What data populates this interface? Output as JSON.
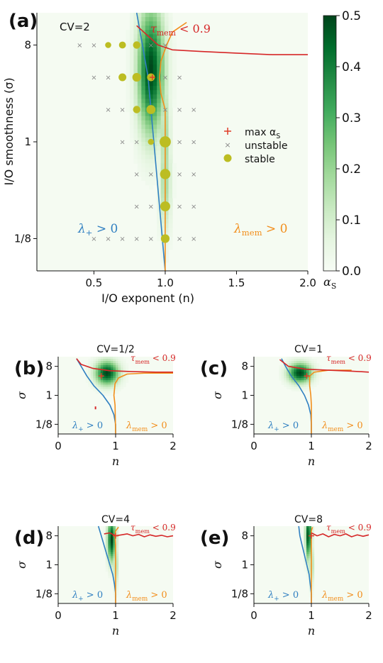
{
  "colors": {
    "lambda_plus": "#2f7fc1",
    "lambda_mem": "#f28e1c",
    "tau_mem": "#d62728",
    "stable": "#bcbd22",
    "unstable": "#888888",
    "max_marker": "#e03c28",
    "cmap_low": "#f7fcf5",
    "cmap_high": "#00441b"
  },
  "colorbar": {
    "ticks": [
      "0.0",
      "0.1",
      "0.2",
      "0.3",
      "0.4",
      "0.5"
    ],
    "range": [
      0.0,
      0.5
    ],
    "label": "α",
    "label_sub": "S"
  },
  "legend": {
    "max": "max α",
    "max_sub": "S",
    "unstable": "unstable",
    "stable": "stable"
  },
  "chart_data": [
    {
      "type": "heatmap",
      "panel": "(a)",
      "cv_label": "CV=2",
      "xlabel": "I/O exponent (n)",
      "ylabel": "I/O smoothness (σ)",
      "xlim": [
        0.1,
        2.0
      ],
      "ylim_log2": [
        -4.0,
        4.0
      ],
      "xticks": [
        "0.5",
        "1.0",
        "1.5",
        "2.0"
      ],
      "yticks": [
        "8",
        "1",
        "1/8"
      ],
      "region_lambda_plus": "λ",
      "region_lambda_plus_sub": "+",
      "region_lambda_plus_rel": " > 0",
      "region_lambda_mem": "λ",
      "region_lambda_mem_sub": "mem",
      "region_lambda_mem_rel": " > 0",
      "region_tau": "τ",
      "region_tau_sub": "mem",
      "region_tau_rel": " < 0.9",
      "heat_peak": [
        0.9,
        2.2
      ],
      "heat_width": [
        0.09,
        1.9
      ],
      "heat_tail": [
        0.0,
        1.0
      ],
      "stable_points": [
        [
          0.6,
          3.0,
          0.3
        ],
        [
          0.7,
          3.0,
          0.4
        ],
        [
          0.8,
          3.0,
          0.45
        ],
        [
          0.7,
          2.0,
          0.5
        ],
        [
          0.8,
          2.0,
          0.6
        ],
        [
          0.9,
          2.0,
          0.5
        ],
        [
          0.8,
          1.0,
          0.45
        ],
        [
          0.9,
          1.0,
          0.65
        ],
        [
          0.9,
          0.0,
          0.3
        ],
        [
          1.0,
          0.0,
          0.9
        ],
        [
          1.0,
          -1.0,
          0.8
        ],
        [
          1.0,
          -2.0,
          0.75
        ],
        [
          1.0,
          -3.0,
          0.6
        ]
      ],
      "unstable_points": [
        [
          0.4,
          3.0
        ],
        [
          0.5,
          3.0
        ],
        [
          0.9,
          3.0
        ],
        [
          1.0,
          3.0
        ],
        [
          0.5,
          2.0
        ],
        [
          0.6,
          2.0
        ],
        [
          1.0,
          2.0
        ],
        [
          1.1,
          2.0
        ],
        [
          0.6,
          1.0
        ],
        [
          0.7,
          1.0
        ],
        [
          1.0,
          1.0
        ],
        [
          1.1,
          1.0
        ],
        [
          1.2,
          1.0
        ],
        [
          0.7,
          0.0
        ],
        [
          0.8,
          0.0
        ],
        [
          1.1,
          0.0
        ],
        [
          1.2,
          0.0
        ],
        [
          0.8,
          -1.0
        ],
        [
          0.9,
          -1.0
        ],
        [
          1.1,
          -1.0
        ],
        [
          1.2,
          -1.0
        ],
        [
          0.8,
          -2.0
        ],
        [
          0.9,
          -2.0
        ],
        [
          1.1,
          -2.0
        ],
        [
          1.2,
          -2.0
        ],
        [
          0.5,
          -3.0
        ],
        [
          0.6,
          -3.0
        ],
        [
          0.7,
          -3.0
        ],
        [
          0.8,
          -3.0
        ],
        [
          0.9,
          -3.0
        ],
        [
          1.1,
          -3.0
        ],
        [
          1.2,
          -3.0
        ]
      ],
      "max_point": [
        0.91,
        2.0
      ],
      "lambda_plus_curve": [
        [
          0.8,
          4.0
        ],
        [
          0.82,
          3.5
        ],
        [
          0.84,
          3.0
        ],
        [
          0.86,
          2.5
        ],
        [
          0.88,
          2.0
        ],
        [
          0.9,
          1.0
        ],
        [
          0.92,
          0.0
        ],
        [
          0.94,
          -1.0
        ],
        [
          0.96,
          -2.0
        ],
        [
          0.98,
          -3.0
        ],
        [
          1.0,
          -4.0
        ]
      ],
      "lambda_mem_curve": [
        [
          1.15,
          3.7
        ],
        [
          1.05,
          3.4
        ],
        [
          1.01,
          3.0
        ],
        [
          0.97,
          2.5
        ],
        [
          0.96,
          2.0
        ],
        [
          0.97,
          1.5
        ],
        [
          1.0,
          1.0
        ],
        [
          1.0,
          -4.0
        ]
      ],
      "tau_curve": [
        [
          0.8,
          3.6
        ],
        [
          0.9,
          3.2
        ],
        [
          0.95,
          3.0
        ],
        [
          1.05,
          2.85
        ],
        [
          1.25,
          2.8
        ],
        [
          1.5,
          2.75
        ],
        [
          1.75,
          2.7
        ],
        [
          2.0,
          2.7
        ]
      ]
    },
    {
      "type": "heatmap",
      "panel": "(b)",
      "cv_label": "CV=1/2",
      "xlabel": "n",
      "ylabel": "σ",
      "xlim": [
        0.0,
        2.0
      ],
      "ylim_log2": [
        -4.0,
        4.0
      ],
      "xticks": [
        "0",
        "1",
        "2"
      ],
      "yticks": [
        "8",
        "1",
        "1/8"
      ],
      "heat_peak": [
        0.85,
        2.3
      ],
      "heat_width": [
        0.2,
        1.2
      ],
      "heat_tail": [
        0.04,
        0.02
      ],
      "max_point": [
        0.75,
        2.0
      ],
      "lambda_plus_curve": [
        [
          0.32,
          3.8
        ],
        [
          0.4,
          3.0
        ],
        [
          0.5,
          2.0
        ],
        [
          0.62,
          1.0
        ],
        [
          0.78,
          0.0
        ],
        [
          0.9,
          -1.0
        ],
        [
          0.97,
          -2.0
        ],
        [
          1.0,
          -3.0
        ],
        [
          1.0,
          -4.0
        ]
      ],
      "lambda_mem_curve": [
        [
          2.0,
          2.3
        ],
        [
          1.5,
          2.3
        ],
        [
          1.2,
          2.2
        ],
        [
          1.05,
          1.8
        ],
        [
          0.99,
          1.2
        ],
        [
          0.97,
          0.0
        ],
        [
          0.99,
          -1.0
        ],
        [
          1.0,
          -4.0
        ]
      ],
      "tau_curve": [
        [
          0.32,
          3.8
        ],
        [
          0.4,
          3.2
        ],
        [
          0.6,
          2.8
        ],
        [
          0.9,
          2.55
        ],
        [
          1.3,
          2.45
        ],
        [
          1.7,
          2.4
        ],
        [
          2.0,
          2.4
        ]
      ],
      "stray_mark": [
        0.65,
        -1.3
      ]
    },
    {
      "type": "heatmap",
      "panel": "(c)",
      "cv_label": "CV=1",
      "xlabel": "n",
      "ylabel": "σ",
      "xlim": [
        0.0,
        2.0
      ],
      "ylim_log2": [
        -4.0,
        4.0
      ],
      "xticks": [
        "0",
        "1",
        "2"
      ],
      "yticks": [
        "8",
        "1",
        "1/8"
      ],
      "heat_peak": [
        0.8,
        2.3
      ],
      "heat_width": [
        0.2,
        1.0
      ],
      "heat_tail": [
        0.1,
        0.05
      ],
      "max_point": [
        0.92,
        2.0
      ],
      "lambda_plus_curve": [
        [
          0.48,
          3.8
        ],
        [
          0.55,
          3.0
        ],
        [
          0.65,
          2.0
        ],
        [
          0.78,
          1.0
        ],
        [
          0.88,
          0.0
        ],
        [
          0.95,
          -1.0
        ],
        [
          0.99,
          -2.0
        ],
        [
          1.0,
          -3.0
        ],
        [
          1.0,
          -4.0
        ]
      ],
      "lambda_mem_curve": [
        [
          1.7,
          2.6
        ],
        [
          1.3,
          2.6
        ],
        [
          1.05,
          2.4
        ],
        [
          0.97,
          2.0
        ],
        [
          0.97,
          1.0
        ],
        [
          0.99,
          0.0
        ],
        [
          1.0,
          -1.0
        ],
        [
          1.0,
          -4.0
        ]
      ],
      "tau_curve": [
        [
          0.45,
          3.7
        ],
        [
          0.6,
          3.0
        ],
        [
          0.9,
          2.7
        ],
        [
          1.3,
          2.6
        ],
        [
          1.7,
          2.5
        ],
        [
          2.0,
          2.4
        ]
      ]
    },
    {
      "type": "heatmap",
      "panel": "(d)",
      "cv_label": "CV=4",
      "xlabel": "n",
      "ylabel": "σ",
      "xlim": [
        0.0,
        2.0
      ],
      "ylim_log2": [
        -4.0,
        4.0
      ],
      "xticks": [
        "0",
        "1",
        "2"
      ],
      "yticks": [
        "8",
        "1",
        "1/8"
      ],
      "heat_peak": [
        0.93,
        2.6
      ],
      "heat_width": [
        0.07,
        2.2
      ],
      "heat_tail": [
        0.0,
        1.0
      ],
      "max_point": [
        1.0,
        3.0
      ],
      "lambda_plus_curve": [
        [
          0.7,
          4.0
        ],
        [
          0.75,
          3.0
        ],
        [
          0.8,
          2.0
        ],
        [
          0.85,
          1.0
        ],
        [
          0.9,
          0.0
        ],
        [
          0.95,
          -1.0
        ],
        [
          0.98,
          -2.0
        ],
        [
          1.0,
          -3.0
        ],
        [
          1.0,
          -4.0
        ]
      ],
      "lambda_mem_curve": [
        [
          1.05,
          3.9
        ],
        [
          1.0,
          3.5
        ],
        [
          0.99,
          3.0
        ],
        [
          1.0,
          2.0
        ],
        [
          1.0,
          -4.0
        ]
      ],
      "tau_curve": [
        [
          0.8,
          3.2
        ],
        [
          0.9,
          3.3
        ],
        [
          1.0,
          3.0
        ],
        [
          1.1,
          3.1
        ],
        [
          1.2,
          3.2
        ],
        [
          1.3,
          3.0
        ],
        [
          1.4,
          3.15
        ],
        [
          1.5,
          2.9
        ],
        [
          1.6,
          3.1
        ],
        [
          1.7,
          2.95
        ],
        [
          1.8,
          3.05
        ],
        [
          1.9,
          2.9
        ],
        [
          2.0,
          3.0
        ]
      ]
    },
    {
      "type": "heatmap",
      "panel": "(e)",
      "cv_label": "CV=8",
      "xlabel": "n",
      "ylabel": "σ",
      "xlim": [
        0.0,
        2.0
      ],
      "ylim_log2": [
        -4.0,
        4.0
      ],
      "xticks": [
        "0",
        "1",
        "2"
      ],
      "yticks": [
        "8",
        "1",
        "1/8"
      ],
      "heat_peak": [
        0.95,
        3.0
      ],
      "heat_width": [
        0.05,
        2.4
      ],
      "heat_tail": [
        0.0,
        1.0
      ],
      "max_point": [
        1.0,
        3.0
      ],
      "lambda_plus_curve": [
        [
          0.78,
          4.0
        ],
        [
          0.8,
          3.0
        ],
        [
          0.84,
          2.0
        ],
        [
          0.88,
          1.0
        ],
        [
          0.92,
          0.0
        ],
        [
          0.96,
          -1.0
        ],
        [
          0.98,
          -2.0
        ],
        [
          1.0,
          -3.0
        ],
        [
          1.0,
          -4.0
        ]
      ],
      "lambda_mem_curve": [
        [
          1.02,
          3.9
        ],
        [
          1.0,
          3.5
        ],
        [
          1.0,
          -4.0
        ]
      ],
      "tau_curve": [
        [
          1.0,
          3.3
        ],
        [
          1.1,
          3.0
        ],
        [
          1.2,
          3.2
        ],
        [
          1.3,
          2.9
        ],
        [
          1.4,
          3.15
        ],
        [
          1.5,
          3.0
        ],
        [
          1.6,
          3.2
        ],
        [
          1.7,
          2.9
        ],
        [
          1.8,
          3.1
        ],
        [
          1.9,
          2.95
        ],
        [
          2.0,
          3.1
        ]
      ]
    }
  ]
}
